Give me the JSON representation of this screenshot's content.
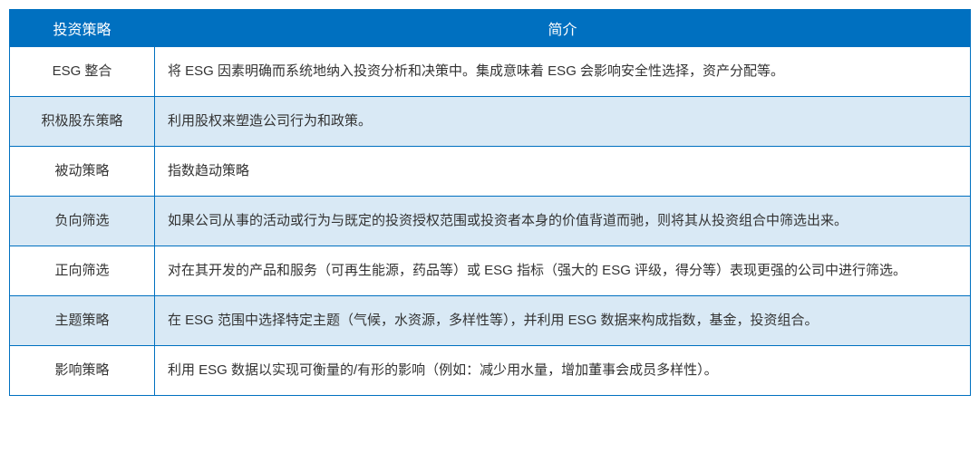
{
  "table": {
    "border_color": "#0070c0",
    "header_bg": "#0070c0",
    "header_text_color": "#ffffff",
    "alt_row_bg": "#d9e9f5",
    "row_bg": "#ffffff",
    "text_color": "#333333",
    "columns": [
      "投资策略",
      "简介"
    ],
    "rows": [
      {
        "strategy": "ESG 整合",
        "desc": "将 ESG 因素明确而系统地纳入投资分析和决策中。集成意味着 ESG 会影响安全性选择，资产分配等。",
        "alt": false
      },
      {
        "strategy": "积极股东策略",
        "desc": "利用股权来塑造公司行为和政策。",
        "alt": true
      },
      {
        "strategy": "被动策略",
        "desc": "指数趋动策略",
        "alt": false
      },
      {
        "strategy": "负向筛选",
        "desc": "如果公司从事的活动或行为与既定的投资授权范围或投资者本身的价值背道而驰，则将其从投资组合中筛选出来。",
        "alt": true
      },
      {
        "strategy": "正向筛选",
        "desc": "对在其开发的产品和服务（可再生能源，药品等）或 ESG 指标（强大的 ESG 评级，得分等）表现更强的公司中进行筛选。",
        "alt": false
      },
      {
        "strategy": "主题策略",
        "desc": "在 ESG 范围中选择特定主题（气候，水资源，多样性等），并利用 ESG 数据来构成指数，基金，投资组合。",
        "alt": true
      },
      {
        "strategy": "影响策略",
        "desc": "利用 ESG 数据以实现可衡量的/有形的影响（例如：减少用水量，增加董事会成员多样性）。",
        "alt": false
      }
    ]
  }
}
